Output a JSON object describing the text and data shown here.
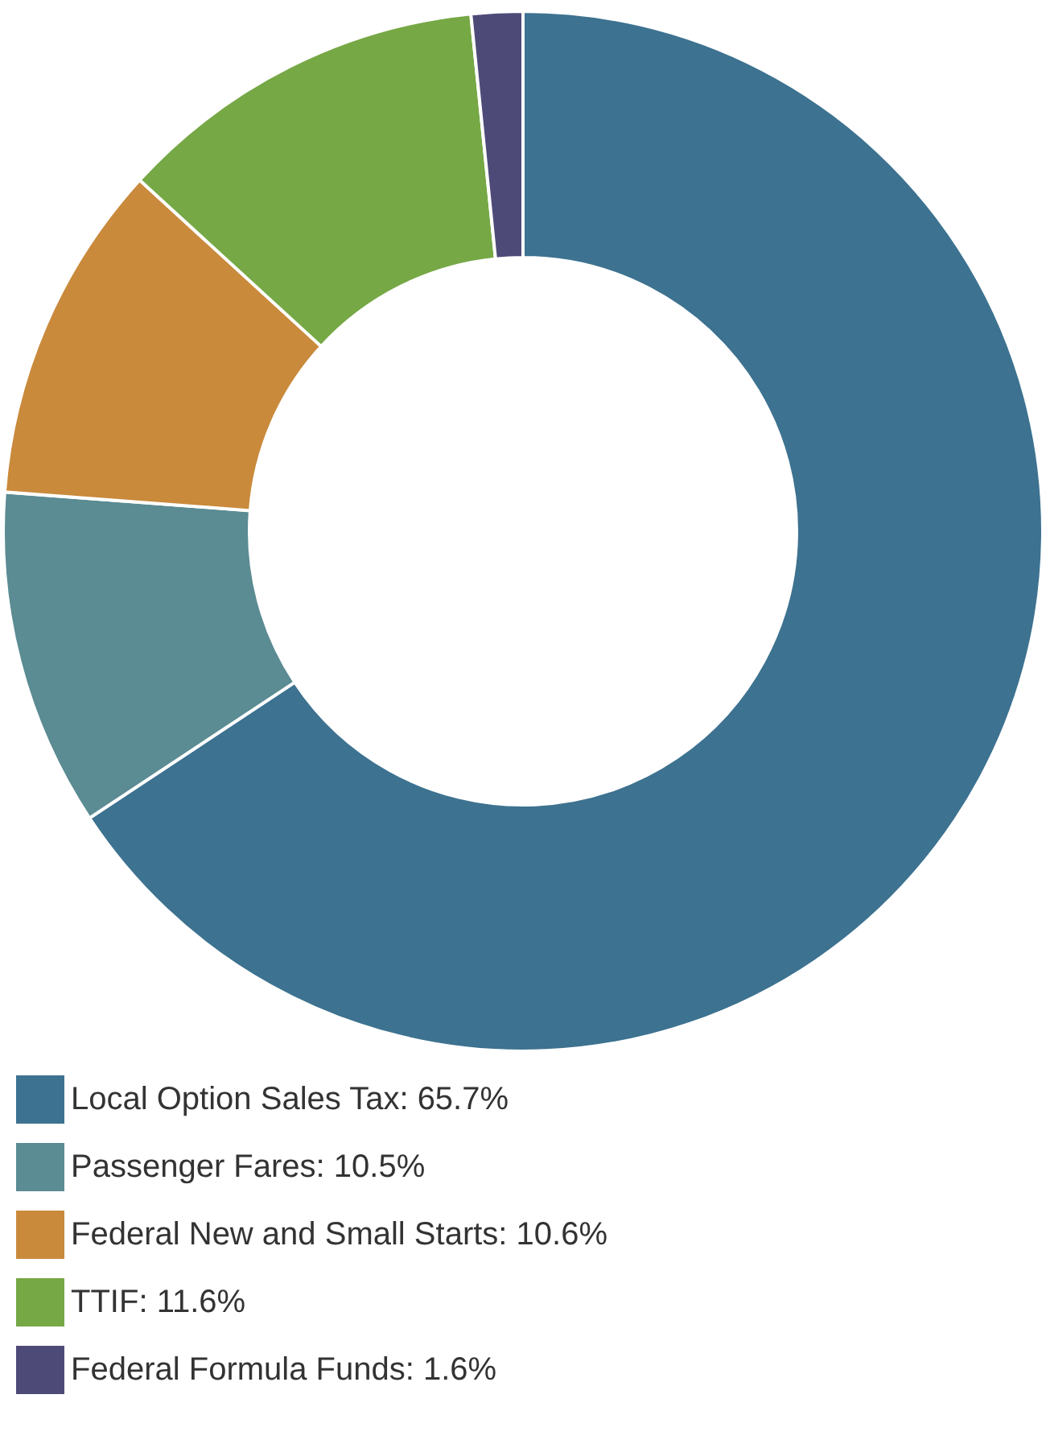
{
  "chart_data": {
    "type": "donut",
    "categories": [
      "Local Option Sales Tax",
      "Passenger Fares",
      "Federal New and Small Starts",
      "TTIF",
      "Federal Formula Funds"
    ],
    "values": [
      65.7,
      10.5,
      10.6,
      11.6,
      1.6
    ],
    "colors": [
      "#3d7290",
      "#5b8b93",
      "#c98a3c",
      "#76a845",
      "#4e4a78"
    ],
    "value_labels": [
      "65.7%",
      "10.5%",
      "10.6%",
      "11.6%",
      "1.6%"
    ],
    "legend": "bottom left"
  }
}
